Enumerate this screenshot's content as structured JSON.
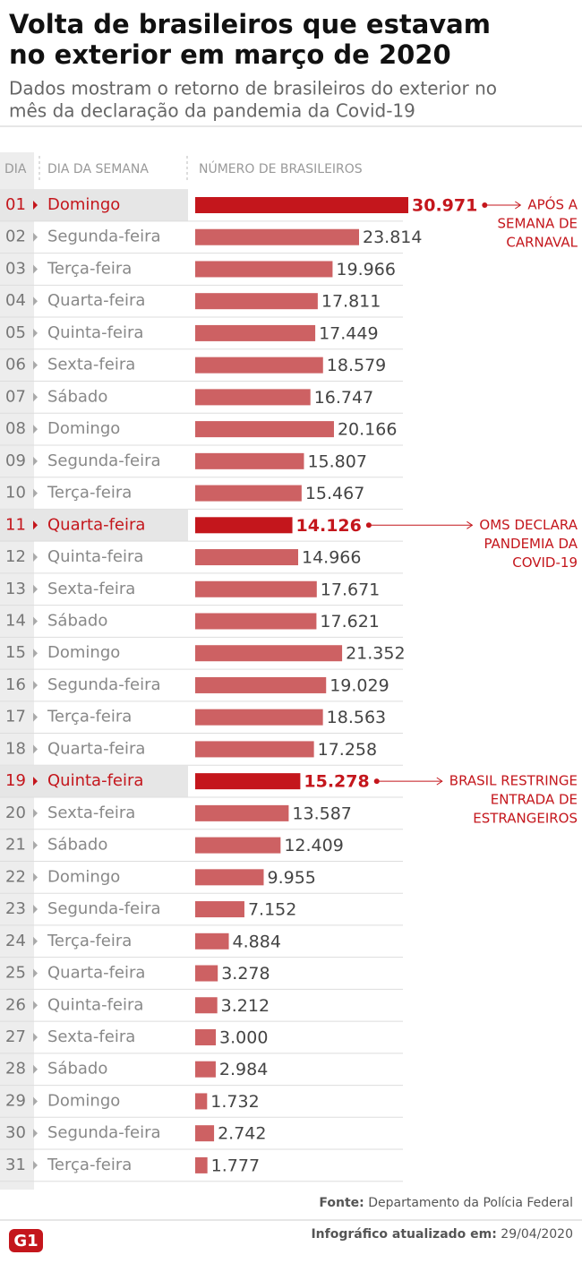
{
  "chart_data": {
    "type": "bar",
    "orientation": "horizontal",
    "title": [
      "Volta de brasileiros que estavam",
      "no exterior em março de 2020"
    ],
    "subtitle": [
      "Dados mostram o retorno de brasileiros do exterior no",
      "mês da declaração da pandemia da Covid-19"
    ],
    "column_headers": [
      "DIA",
      "DIA DA SEMANA",
      "NÚMERO DE BRASILEIROS"
    ],
    "categories": [
      "01",
      "02",
      "03",
      "04",
      "05",
      "06",
      "07",
      "08",
      "09",
      "10",
      "11",
      "12",
      "13",
      "14",
      "15",
      "16",
      "17",
      "18",
      "19",
      "20",
      "21",
      "22",
      "23",
      "24",
      "25",
      "26",
      "27",
      "28",
      "29",
      "30",
      "31"
    ],
    "weekdays": [
      "Domingo",
      "Segunda-feira",
      "Terça-feira",
      "Quarta-feira",
      "Quinta-feira",
      "Sexta-feira",
      "Sábado",
      "Domingo",
      "Segunda-feira",
      "Terça-feira",
      "Quarta-feira",
      "Quinta-feira",
      "Sexta-feira",
      "Sábado",
      "Domingo",
      "Segunda-feira",
      "Terça-feira",
      "Quarta-feira",
      "Quinta-feira",
      "Sexta-feira",
      "Sábado",
      "Domingo",
      "Segunda-feira",
      "Terça-feira",
      "Quarta-feira",
      "Quinta-feira",
      "Sexta-feira",
      "Sábado",
      "Domingo",
      "Segunda-feira",
      "Terça-feira"
    ],
    "values": [
      30971,
      23814,
      19966,
      17811,
      17449,
      18579,
      16747,
      20166,
      15807,
      15467,
      14126,
      14966,
      17671,
      17621,
      21352,
      19029,
      18563,
      17258,
      15278,
      13587,
      12409,
      9955,
      7152,
      4884,
      3278,
      3212,
      3000,
      2984,
      1732,
      2742,
      1777
    ],
    "value_labels": [
      "30.971",
      "23.814",
      "19.966",
      "17.811",
      "17.449",
      "18.579",
      "16.747",
      "20.166",
      "15.807",
      "15.467",
      "14.126",
      "14.966",
      "17.671",
      "17.621",
      "21.352",
      "19.029",
      "18.563",
      "17.258",
      "15.278",
      "13.587",
      "12.409",
      "9.955",
      "7.152",
      "4.884",
      "3.278",
      "3.212",
      "3.000",
      "2.984",
      "1.732",
      "2.742",
      "1.777"
    ],
    "color": "#cd6163",
    "highlight_color": "#c4161c",
    "annotations": [
      {
        "category_index": 0,
        "text": [
          "APÓS A",
          "SEMANA DE",
          "CARNAVAL"
        ]
      },
      {
        "category_index": 10,
        "text": [
          "OMS DECLARA",
          "PANDEMIA DA",
          "COVID-19"
        ]
      },
      {
        "category_index": 18,
        "text": [
          "BRASIL RESTRINGE",
          "ENTRADA DE",
          "ESTRANGEIROS"
        ]
      }
    ],
    "source_label": "Fonte:",
    "source": "Departamento da Polícia Federal",
    "updated_label": "Infográfico atualizado em:",
    "updated": "29/04/2020",
    "logo": "G1"
  }
}
